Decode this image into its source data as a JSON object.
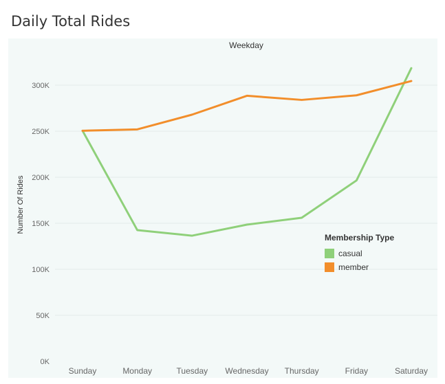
{
  "page": {
    "title": "Daily Total Rides"
  },
  "chart_data": {
    "type": "line",
    "title": "Daily Total Rides",
    "column_header": "Weekday",
    "xlabel": "",
    "ylabel": "Number Of Rides",
    "categories": [
      "Sunday",
      "Monday",
      "Tuesday",
      "Wednesday",
      "Thursday",
      "Friday",
      "Saturday"
    ],
    "yticks": [
      0,
      50000,
      100000,
      150000,
      200000,
      250000,
      300000
    ],
    "ytick_labels": [
      "0K",
      "50K",
      "100K",
      "150K",
      "200K",
      "250K",
      "300K"
    ],
    "ylim": [
      0,
      330000
    ],
    "grid": true,
    "legend_title": "Membership Type",
    "legend_position": "right",
    "series": [
      {
        "name": "casual",
        "color": "#8fd07a",
        "values": [
          250500,
          142500,
          136500,
          148500,
          156000,
          196500,
          318500
        ]
      },
      {
        "name": "member",
        "color": "#f28e2b",
        "values": [
          250500,
          252000,
          268000,
          288500,
          284000,
          289000,
          304500
        ]
      }
    ]
  }
}
